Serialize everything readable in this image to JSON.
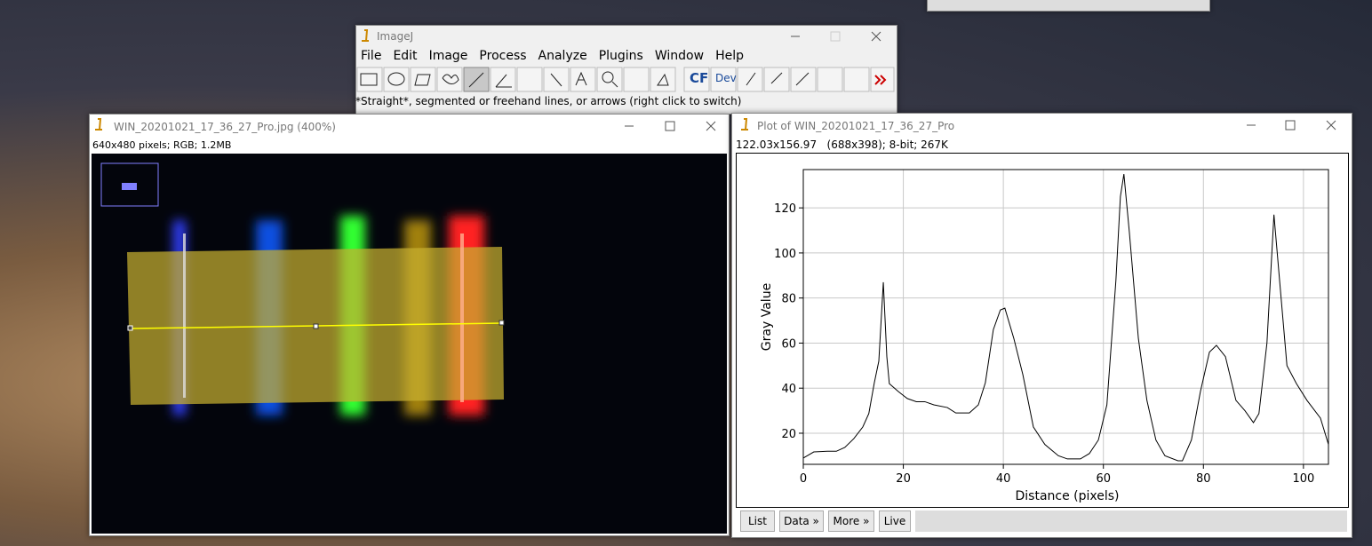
{
  "imagej": {
    "title": "ImageJ",
    "menu": [
      "File",
      "Edit",
      "Image",
      "Process",
      "Analyze",
      "Plugins",
      "Window",
      "Help"
    ],
    "tools": [
      "CF",
      "Dev"
    ],
    "status": "*Straight*, segmented or freehand lines, or arrows (right click to switch)"
  },
  "image_window": {
    "title": "WIN_20201021_17_36_27_Pro.jpg (400%)",
    "info": "640x480 pixels; RGB; 1.2MB"
  },
  "plot_window": {
    "title": "Plot of WIN_20201021_17_36_27_Pro",
    "info": "122.03x156.97   (688x398); 8-bit; 267K",
    "buttons": [
      "List",
      "Data »",
      "More »",
      "Live"
    ]
  },
  "chart_data": {
    "type": "line",
    "x_label": "Distance (pixels)",
    "y_label": "Gray Value",
    "color": "#000000",
    "grid": true,
    "x": [
      0,
      2.1,
      4.8,
      6.6,
      8.3,
      10.1,
      11.9,
      13.1,
      14.2,
      15.1,
      16,
      16.7,
      17.2,
      19,
      20.8,
      22.6,
      24.3,
      26.1,
      28.8,
      30.5,
      33.2,
      35,
      36.4,
      38,
      39.4,
      40.3,
      42.1,
      43.9,
      46,
      48.3,
      51,
      52.8,
      55.4,
      57.2,
      59,
      60.7,
      62.5,
      63.4,
      64.1,
      65.2,
      67,
      68.7,
      70.5,
      72.3,
      74.9,
      75.8,
      77.6,
      79.4,
      81.2,
      82.6,
      84.4,
      86.5,
      88.3,
      90,
      91.1,
      92.7,
      94.1,
      95.3,
      96.7,
      98.6,
      100.7,
      103.4,
      105
    ],
    "values": [
      9,
      11.7,
      12,
      12,
      13.7,
      17.6,
      22.8,
      28.7,
      42.4,
      52,
      87,
      54,
      42,
      38.5,
      35.4,
      34,
      34,
      32.6,
      31.4,
      29,
      29,
      32.6,
      42.4,
      66,
      74.7,
      75.5,
      62,
      46,
      22.8,
      15,
      10,
      8.6,
      8.6,
      11,
      17,
      32.6,
      87.7,
      125,
      135,
      109,
      62,
      34.6,
      17,
      10,
      7.8,
      7.8,
      17,
      38.5,
      56,
      59,
      54,
      34.6,
      30,
      24.7,
      28.7,
      60,
      117,
      86,
      50,
      42,
      34.6,
      26.7,
      15
    ],
    "xlim": [
      0,
      105
    ],
    "ylim": [
      6.2,
      137
    ],
    "xticks": [
      0,
      20,
      40,
      60,
      80,
      100
    ],
    "yticks": [
      20,
      40,
      60,
      80,
      100,
      120
    ]
  }
}
